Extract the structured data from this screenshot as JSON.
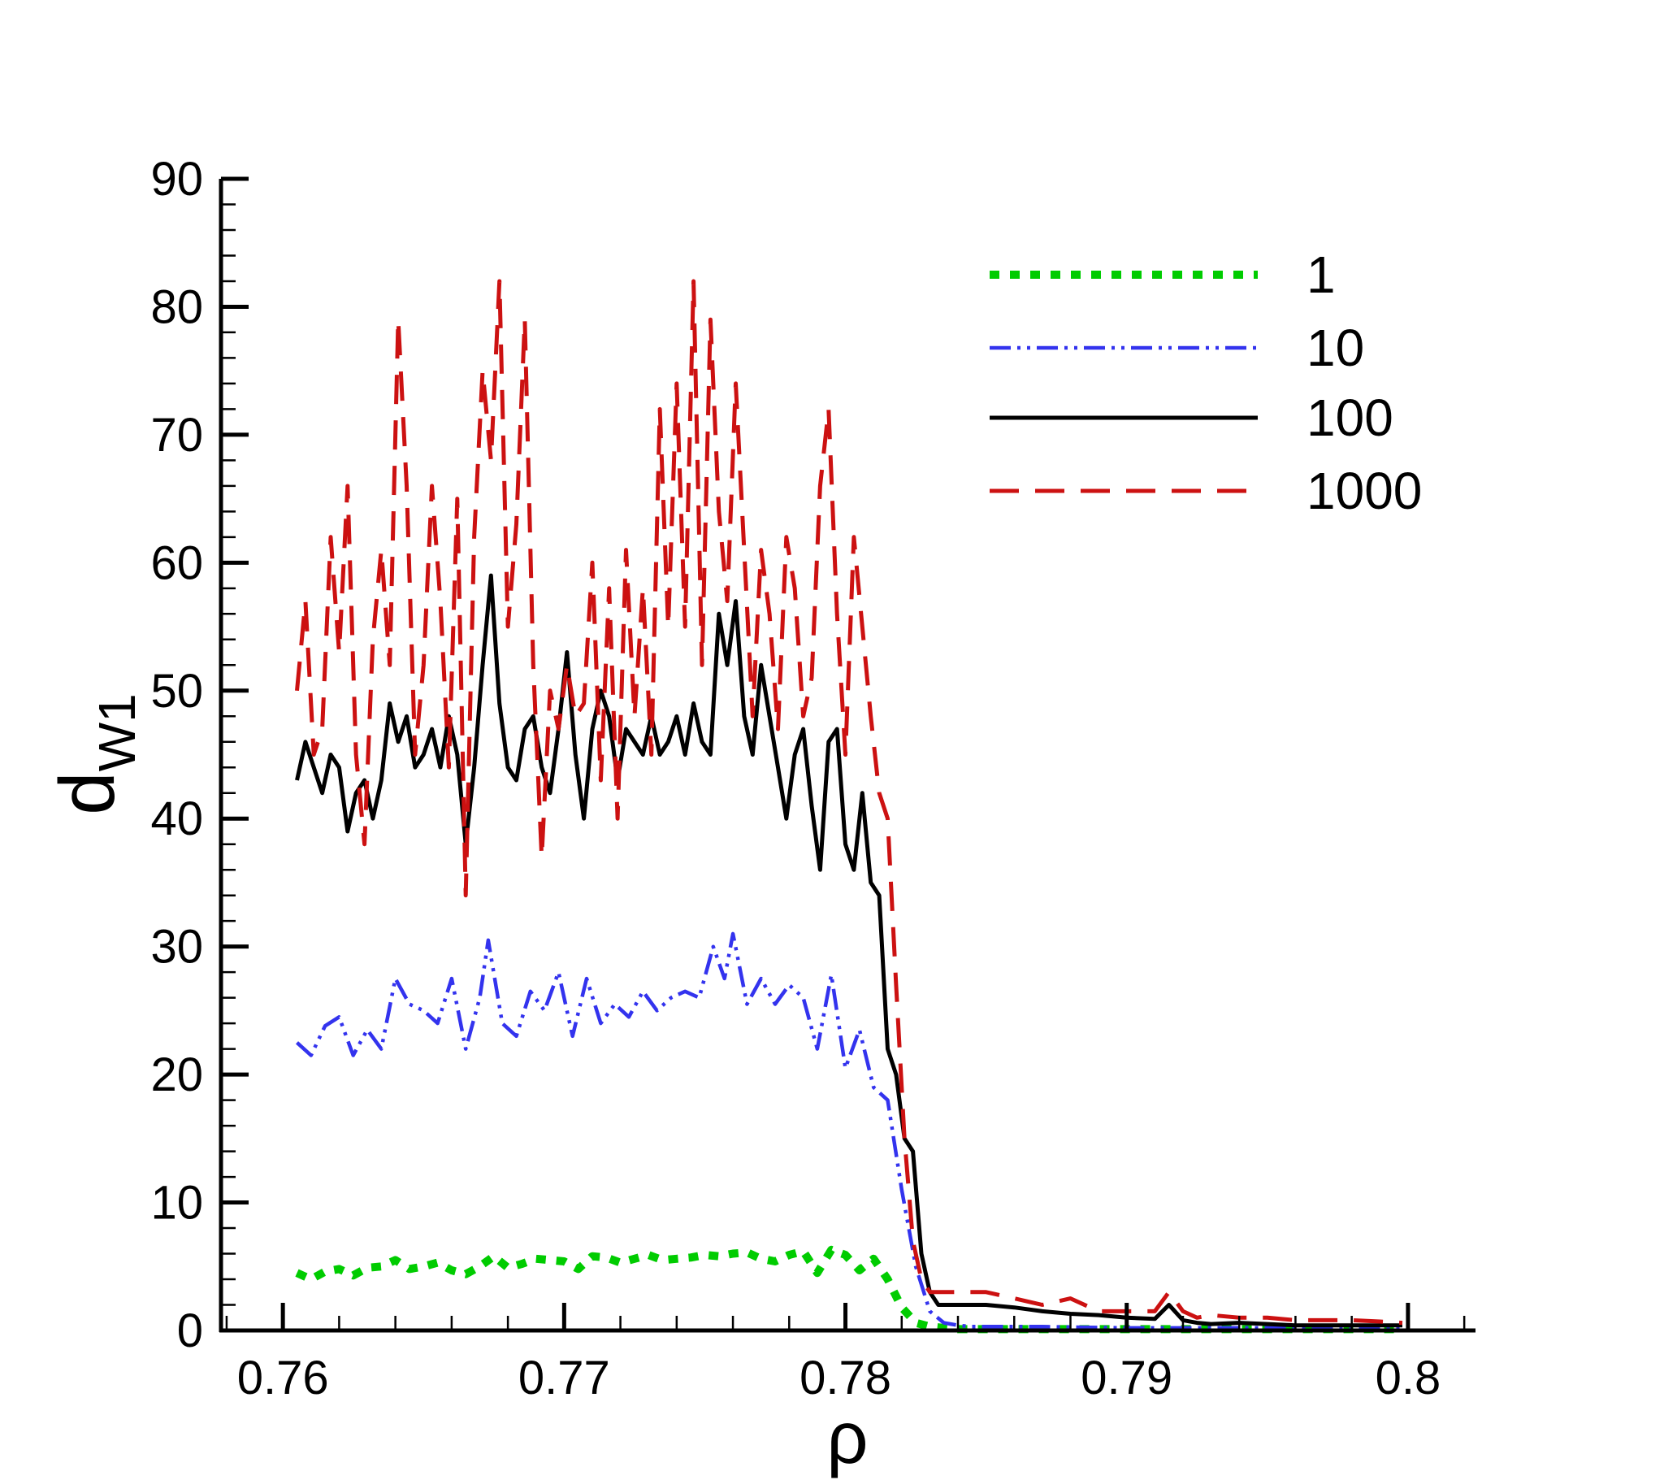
{
  "chart_data": {
    "type": "line",
    "title": "",
    "xlabel": "ρ",
    "ylabel_main": "d",
    "ylabel_sub": "W1",
    "xlim": [
      0.7578,
      0.8024
    ],
    "ylim": [
      0,
      90
    ],
    "xticks": [
      0.76,
      0.77,
      0.78,
      0.79,
      0.8
    ],
    "xtick_labels": [
      "0.76",
      "0.77",
      "0.78",
      "0.79",
      "0.8"
    ],
    "yticks": [
      0,
      10,
      20,
      30,
      40,
      50,
      60,
      70,
      80,
      90
    ],
    "ytick_labels": [
      "0",
      "10",
      "20",
      "30",
      "40",
      "50",
      "60",
      "70",
      "80",
      "90"
    ],
    "grid": false,
    "legend_position": "top-right",
    "series": [
      {
        "name": "1",
        "color": "#00cc00",
        "style": "dotted",
        "x": [
          0.7605,
          0.761,
          0.7615,
          0.762,
          0.7625,
          0.763,
          0.7635,
          0.764,
          0.7645,
          0.765,
          0.7655,
          0.766,
          0.7665,
          0.767,
          0.7675,
          0.768,
          0.7685,
          0.769,
          0.7695,
          0.77,
          0.7705,
          0.771,
          0.7715,
          0.772,
          0.7725,
          0.773,
          0.7735,
          0.774,
          0.7745,
          0.775,
          0.7755,
          0.776,
          0.7765,
          0.777,
          0.7775,
          0.778,
          0.7785,
          0.779,
          0.7795,
          0.78,
          0.7805,
          0.781,
          0.7815,
          0.782,
          0.7825,
          0.783,
          0.7835,
          0.784,
          0.7845,
          0.785,
          0.787,
          0.79,
          0.795,
          0.7998
        ],
        "y": [
          4.5,
          4.0,
          4.6,
          4.8,
          4.3,
          4.9,
          5.0,
          5.5,
          4.8,
          5.0,
          5.3,
          4.7,
          4.4,
          5.0,
          5.8,
          4.9,
          5.2,
          5.6,
          5.5,
          5.4,
          4.8,
          5.8,
          5.7,
          5.3,
          5.6,
          5.9,
          5.5,
          5.6,
          5.7,
          5.9,
          5.8,
          6.0,
          6.1,
          5.6,
          5.4,
          5.9,
          6.2,
          4.5,
          6.3,
          5.9,
          4.7,
          5.6,
          4.0,
          1.8,
          0.6,
          0.3,
          0.2,
          0.1,
          0.1,
          0.1,
          0.1,
          0.1,
          0.1,
          0.1
        ]
      },
      {
        "name": "10",
        "color": "#3333ee",
        "style": "dash-dot-dot",
        "x": [
          0.7605,
          0.761,
          0.7615,
          0.762,
          0.7625,
          0.763,
          0.7635,
          0.764,
          0.7645,
          0.765,
          0.7655,
          0.766,
          0.7665,
          0.767,
          0.7673,
          0.7678,
          0.7683,
          0.7688,
          0.7693,
          0.7698,
          0.7703,
          0.7708,
          0.7713,
          0.7718,
          0.7723,
          0.7728,
          0.7733,
          0.7738,
          0.7743,
          0.7748,
          0.7753,
          0.7757,
          0.776,
          0.7765,
          0.777,
          0.7775,
          0.778,
          0.7785,
          0.779,
          0.7795,
          0.78,
          0.7805,
          0.781,
          0.7815,
          0.782,
          0.7825,
          0.783,
          0.7835,
          0.784,
          0.7845,
          0.785,
          0.787,
          0.79,
          0.795,
          0.7998
        ],
        "y": [
          22.5,
          21.5,
          23.8,
          24.5,
          21.5,
          23.5,
          22.0,
          27.5,
          25.5,
          25.0,
          24.0,
          27.5,
          22.0,
          26.0,
          30.5,
          24.0,
          23.0,
          26.5,
          25.0,
          28.0,
          23.0,
          27.5,
          24.0,
          25.5,
          24.5,
          26.5,
          25.0,
          26.0,
          26.5,
          26.0,
          30.0,
          27.5,
          31.0,
          25.5,
          27.5,
          25.5,
          27.0,
          26.0,
          22.0,
          27.8,
          20.5,
          23.5,
          19.0,
          18.0,
          11.0,
          5.0,
          1.5,
          0.6,
          0.4,
          0.3,
          0.3,
          0.3,
          0.2,
          0.2,
          0.2
        ]
      },
      {
        "name": "100",
        "color": "#000000",
        "style": "solid",
        "x": [
          0.7605,
          0.7608,
          0.7611,
          0.7614,
          0.7617,
          0.762,
          0.7623,
          0.7626,
          0.7629,
          0.7632,
          0.7635,
          0.7638,
          0.7641,
          0.7644,
          0.7647,
          0.765,
          0.7653,
          0.7656,
          0.7659,
          0.7662,
          0.7665,
          0.7668,
          0.7671,
          0.7674,
          0.7677,
          0.768,
          0.7683,
          0.7686,
          0.7689,
          0.7692,
          0.7695,
          0.7698,
          0.7701,
          0.7704,
          0.7707,
          0.771,
          0.7713,
          0.7716,
          0.7719,
          0.7722,
          0.7725,
          0.7728,
          0.7731,
          0.7734,
          0.7737,
          0.774,
          0.7743,
          0.7746,
          0.7749,
          0.7752,
          0.7755,
          0.7758,
          0.7761,
          0.7764,
          0.7767,
          0.777,
          0.7773,
          0.7776,
          0.7779,
          0.7782,
          0.7785,
          0.7788,
          0.7791,
          0.7794,
          0.7797,
          0.78,
          0.7803,
          0.7806,
          0.7809,
          0.7812,
          0.7815,
          0.7818,
          0.7821,
          0.7824,
          0.7827,
          0.783,
          0.7833,
          0.7836,
          0.7839,
          0.785,
          0.786,
          0.787,
          0.788,
          0.789,
          0.79,
          0.791,
          0.7915,
          0.792,
          0.7925,
          0.793,
          0.794,
          0.795,
          0.796,
          0.797,
          0.798,
          0.799,
          0.7998
        ],
        "y": [
          43,
          46,
          44,
          42,
          45,
          44,
          39,
          42,
          43,
          40,
          43,
          49,
          46,
          48,
          44,
          45,
          47,
          44,
          48,
          45,
          38,
          44,
          52,
          59,
          49,
          44,
          43,
          47,
          48,
          44,
          42,
          47,
          53,
          45,
          40,
          47,
          50,
          48,
          43,
          47,
          46,
          45,
          48,
          45,
          46,
          48,
          45,
          49,
          46,
          45,
          56,
          52,
          57,
          48,
          45,
          52,
          48,
          44,
          40,
          45,
          47,
          41,
          36,
          46,
          47,
          38,
          36,
          42,
          35,
          34,
          22,
          20,
          15,
          14,
          6,
          3,
          2,
          2,
          2,
          2,
          1.8,
          1.5,
          1.3,
          1.2,
          1.0,
          0.9,
          2.0,
          0.8,
          0.6,
          0.5,
          0.6,
          0.5,
          0.4,
          0.4,
          0.4,
          0.4,
          0.4
        ]
      },
      {
        "name": "1000",
        "color": "#cc1111",
        "style": "dashed",
        "x": [
          0.7605,
          0.7608,
          0.7611,
          0.7614,
          0.7617,
          0.762,
          0.7623,
          0.7626,
          0.7629,
          0.7632,
          0.7635,
          0.7638,
          0.7641,
          0.7644,
          0.7647,
          0.765,
          0.7653,
          0.7656,
          0.7659,
          0.7662,
          0.7665,
          0.7668,
          0.7671,
          0.7674,
          0.7677,
          0.768,
          0.7683,
          0.7686,
          0.7689,
          0.7692,
          0.7695,
          0.7698,
          0.7701,
          0.7704,
          0.7707,
          0.771,
          0.7713,
          0.7716,
          0.7719,
          0.7722,
          0.7725,
          0.7728,
          0.7731,
          0.7734,
          0.7737,
          0.774,
          0.7743,
          0.7746,
          0.7749,
          0.7752,
          0.7755,
          0.7758,
          0.7761,
          0.7764,
          0.7767,
          0.777,
          0.7773,
          0.7776,
          0.7779,
          0.7782,
          0.7785,
          0.7788,
          0.7791,
          0.7794,
          0.7797,
          0.78,
          0.7803,
          0.7806,
          0.7809,
          0.7812,
          0.7815,
          0.7818,
          0.7821,
          0.7824,
          0.7827,
          0.783,
          0.7833,
          0.7836,
          0.785,
          0.786,
          0.787,
          0.788,
          0.789,
          0.79,
          0.791,
          0.7915,
          0.792,
          0.7925,
          0.793,
          0.794,
          0.795,
          0.796,
          0.797,
          0.798,
          0.799,
          0.7998
        ],
        "y": [
          50,
          57,
          45,
          47,
          62,
          53,
          66,
          45,
          38,
          54,
          61,
          52,
          79,
          66,
          45,
          52,
          66,
          57,
          44,
          65,
          34,
          62,
          75,
          68,
          82,
          55,
          63,
          79,
          52,
          37,
          50,
          47,
          52,
          48,
          49,
          60,
          43,
          58,
          40,
          61,
          48,
          58,
          45,
          72,
          55,
          74,
          55,
          82,
          52,
          79,
          64,
          57,
          74,
          61,
          48,
          61,
          56,
          47,
          62,
          58,
          48,
          51,
          66,
          72,
          56,
          45,
          62,
          55,
          48,
          42,
          40,
          27,
          15,
          7,
          4,
          3,
          3,
          3,
          3,
          2.5,
          2.0,
          2.5,
          1.5,
          1.5,
          1.5,
          3.0,
          1.5,
          1.0,
          1.2,
          1.0,
          1.0,
          0.8,
          0.8,
          0.8,
          0.7,
          0.6
        ]
      }
    ]
  }
}
